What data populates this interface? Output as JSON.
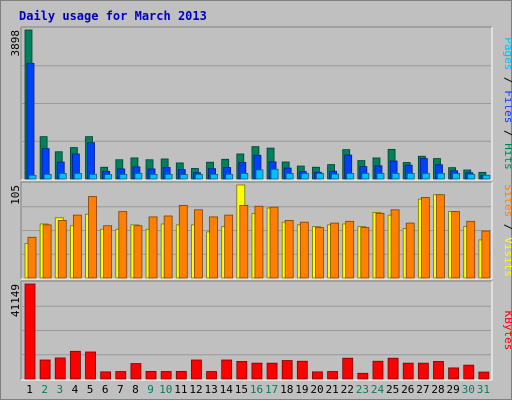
{
  "title": "Daily usage for March 2013",
  "colors": {
    "background": "#c0c0c0",
    "plot_background": "#c0c0c0",
    "grid": "#9a9a9a",
    "title": "#0000c0",
    "hits": "#00805c",
    "files": "#0040ff",
    "pages": "#00c0ff",
    "visits": "#ffff00",
    "sites": "#ff8000",
    "kbytes": "#ff0000",
    "weekday_label": "#000000",
    "weekend_label": "#00805c"
  },
  "chart_data": [
    {
      "type": "bar",
      "panel": "top",
      "ymax_label": "3898",
      "ylim": [
        0,
        3898
      ],
      "side_label": [
        {
          "text": "Pages",
          "color": "#00c0ff"
        },
        {
          "text": " / ",
          "color": "#000000"
        },
        {
          "text": "Files",
          "color": "#0040ff"
        },
        {
          "text": " / ",
          "color": "#000000"
        },
        {
          "text": "Hits",
          "color": "#00805c"
        }
      ],
      "categories": [
        "1",
        "2",
        "3",
        "4",
        "5",
        "6",
        "7",
        "8",
        "9",
        "10",
        "11",
        "12",
        "13",
        "14",
        "15",
        "16",
        "17",
        "18",
        "19",
        "20",
        "21",
        "22",
        "23",
        "24",
        "25",
        "26",
        "27",
        "28",
        "29",
        "30",
        "31"
      ],
      "series": [
        {
          "name": "Hits",
          "values": [
            3898,
            1108,
            713,
            822,
            1108,
            308,
            504,
            551,
            504,
            524,
            421,
            275,
            439,
            516,
            655,
            847,
            808,
            445,
            339,
            308,
            377,
            768,
            482,
            551,
            775,
            431,
            595,
            534,
            297,
            236,
            174
          ]
        },
        {
          "name": "Files",
          "values": [
            3027,
            794,
            443,
            655,
            950,
            201,
            263,
            317,
            263,
            301,
            247,
            165,
            270,
            301,
            432,
            620,
            448,
            285,
            193,
            177,
            201,
            627,
            324,
            344,
            471,
            361,
            535,
            372,
            216,
            165,
            94
          ]
        },
        {
          "name": "Pages",
          "values": [
            98,
            122,
            145,
            145,
            122,
            115,
            122,
            145,
            122,
            122,
            115,
            122,
            122,
            122,
            145,
            238,
            255,
            145,
            145,
            145,
            130,
            145,
            145,
            145,
            145,
            145,
            145,
            145,
            145,
            122,
            98
          ]
        }
      ]
    },
    {
      "type": "bar",
      "panel": "middle",
      "ymax_label": "105",
      "ylim": [
        0,
        105
      ],
      "side_label": [
        {
          "text": "Sites",
          "color": "#ff8000"
        },
        {
          "text": " / ",
          "color": "#000000"
        },
        {
          "text": "Visits",
          "color": "#ffff00"
        }
      ],
      "categories": [
        "1",
        "2",
        "3",
        "4",
        "5",
        "6",
        "7",
        "8",
        "9",
        "10",
        "11",
        "12",
        "13",
        "14",
        "15",
        "16",
        "17",
        "18",
        "19",
        "20",
        "21",
        "22",
        "23",
        "24",
        "25",
        "26",
        "27",
        "28",
        "29",
        "30",
        "31"
      ],
      "series": [
        {
          "name": "Visits",
          "values": [
            39,
            61,
            68,
            59,
            72,
            55,
            55,
            60,
            55,
            61,
            60,
            60,
            52,
            58,
            105,
            73,
            79,
            63,
            60,
            58,
            60,
            61,
            58,
            74,
            71,
            56,
            89,
            94,
            75,
            58,
            43
          ]
        },
        {
          "name": "Sites",
          "values": [
            46,
            60,
            65,
            71,
            92,
            59,
            75,
            59,
            69,
            70,
            82,
            77,
            69,
            71,
            82,
            81,
            80,
            65,
            63,
            57,
            62,
            64,
            57,
            73,
            77,
            62,
            91,
            94,
            75,
            64,
            53
          ]
        }
      ]
    },
    {
      "type": "bar",
      "panel": "bottom",
      "ymax_label": "41149",
      "ylim": [
        0,
        41149
      ],
      "side_label": [
        {
          "text": "KBytes",
          "color": "#ff0000"
        }
      ],
      "categories": [
        "1",
        "2",
        "3",
        "4",
        "5",
        "6",
        "7",
        "8",
        "9",
        "10",
        "11",
        "12",
        "13",
        "14",
        "15",
        "16",
        "17",
        "18",
        "19",
        "20",
        "21",
        "22",
        "23",
        "24",
        "25",
        "26",
        "27",
        "28",
        "29",
        "30",
        "31"
      ],
      "weekend_days": [
        "2",
        "3",
        "9",
        "10",
        "16",
        "17",
        "23",
        "24",
        "30",
        "31"
      ],
      "series": [
        {
          "name": "KBytes",
          "values": [
            41149,
            8229,
            9120,
            12000,
            11700,
            3100,
            3240,
            6700,
            3300,
            3250,
            3280,
            8229,
            3240,
            8229,
            7600,
            6857,
            6857,
            8000,
            7700,
            3100,
            3240,
            9000,
            2470,
            7700,
            9000,
            6857,
            6857,
            7600,
            4800,
            6000,
            3000
          ]
        }
      ]
    }
  ]
}
